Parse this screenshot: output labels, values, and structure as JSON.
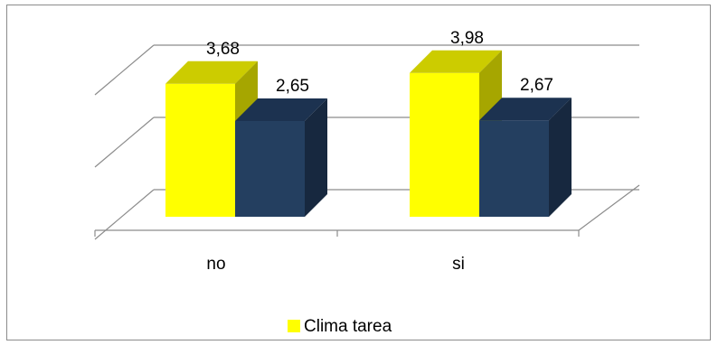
{
  "chart_data": {
    "type": "bar",
    "categories": [
      "no",
      "si"
    ],
    "series": [
      {
        "name": "Clima tarea",
        "values": [
          3.68,
          3.98
        ],
        "color": "#ffff00",
        "top_color": "#cccc00",
        "side_color": "#a6a600"
      },
      {
        "values": [
          2.65,
          2.67
        ],
        "color": "#243f60",
        "top_color": "#1c3250",
        "side_color": "#17283f"
      }
    ],
    "data_labels": [
      [
        "3,68",
        "3,98"
      ],
      [
        "2,65",
        "2,67"
      ]
    ],
    "ylim": [
      0,
      4
    ],
    "grid": true,
    "legend_position": "bottom"
  }
}
